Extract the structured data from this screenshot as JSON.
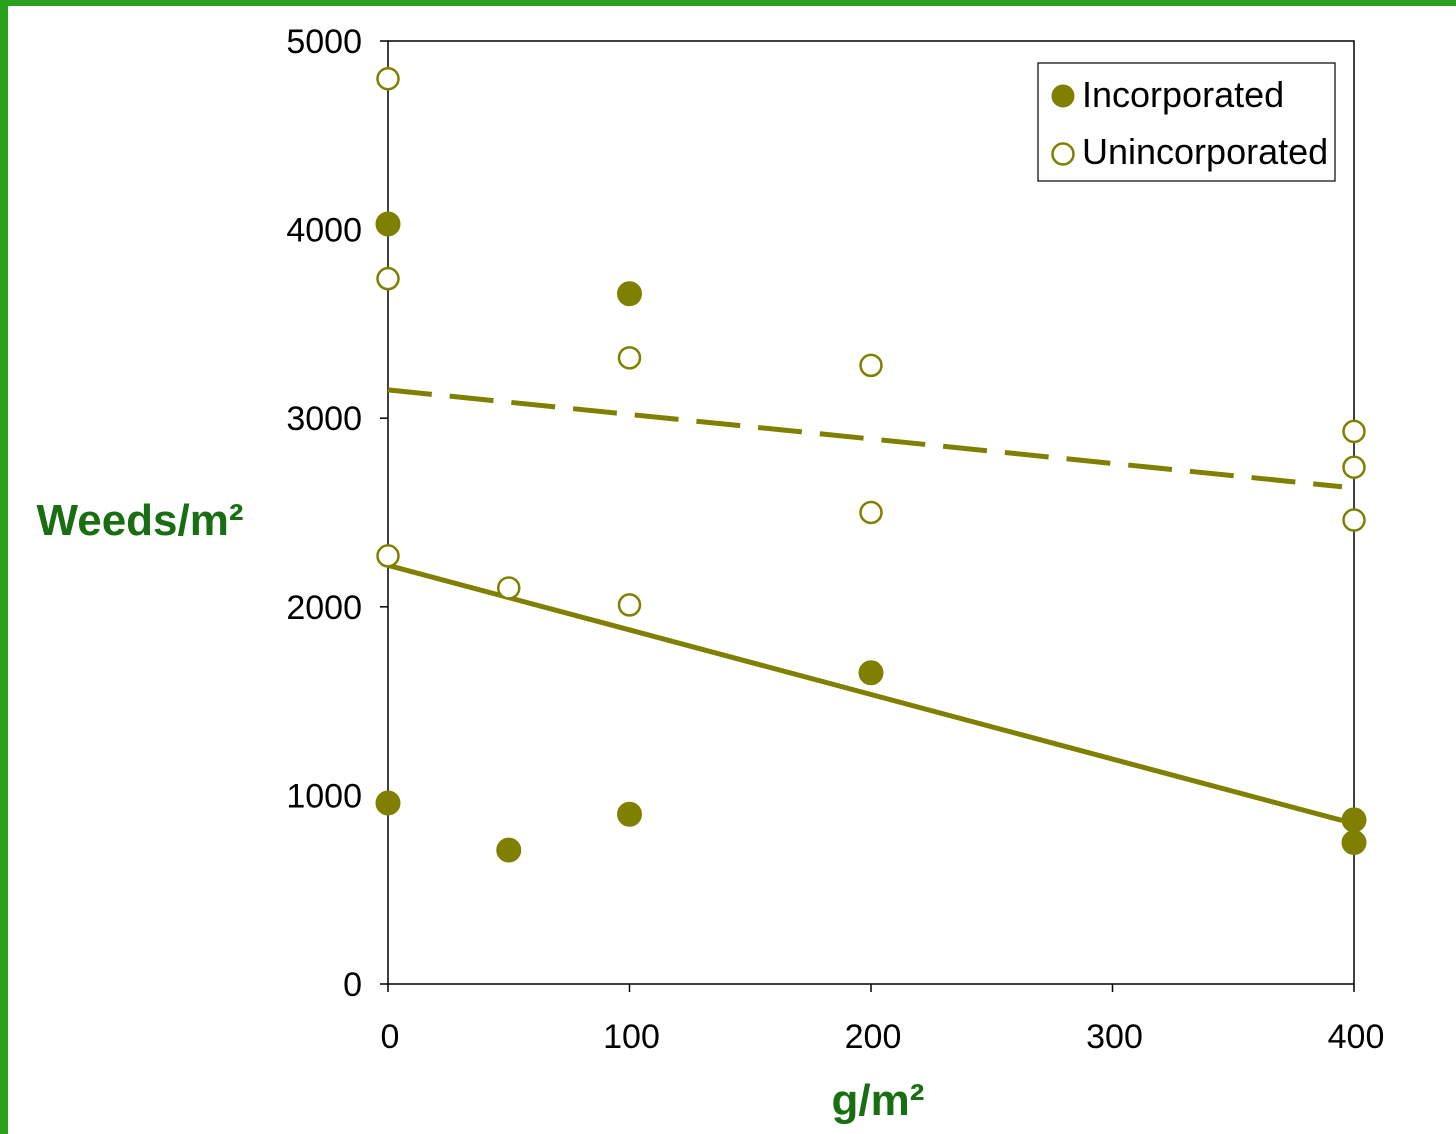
{
  "colors": {
    "marker": "#808000",
    "axis_title": "#1a6e12",
    "frame": "#2aa11a"
  },
  "chart_data": {
    "type": "scatter",
    "xlabel": "g/m²",
    "ylabel": "Weeds/m²",
    "xlim": [
      0,
      400
    ],
    "ylim": [
      0,
      5000
    ],
    "x_ticks": [
      "0",
      "100",
      "200",
      "300",
      "400"
    ],
    "y_ticks": [
      "0",
      "1000",
      "2000",
      "3000",
      "4000",
      "5000"
    ],
    "grid": false,
    "legend_position": "top-right",
    "series": [
      {
        "name": "Incorporated",
        "marker": "filled-circle",
        "points": [
          [
            0,
            4030
          ],
          [
            0,
            960
          ],
          [
            50,
            710
          ],
          [
            100,
            3660
          ],
          [
            100,
            900
          ],
          [
            200,
            1650
          ],
          [
            400,
            870
          ],
          [
            400,
            750
          ]
        ],
        "trendline": {
          "style": "solid",
          "x": [
            0,
            400
          ],
          "y": [
            2220,
            850
          ]
        }
      },
      {
        "name": "Unincorporated",
        "marker": "open-circle",
        "points": [
          [
            0,
            4800
          ],
          [
            0,
            3740
          ],
          [
            0,
            2270
          ],
          [
            50,
            2100
          ],
          [
            100,
            3320
          ],
          [
            100,
            2010
          ],
          [
            200,
            3280
          ],
          [
            200,
            2500
          ],
          [
            400,
            2930
          ],
          [
            400,
            2740
          ],
          [
            400,
            2460
          ]
        ],
        "trendline": {
          "style": "dashed",
          "x": [
            0,
            400
          ],
          "y": [
            3150,
            2630
          ]
        }
      }
    ]
  }
}
